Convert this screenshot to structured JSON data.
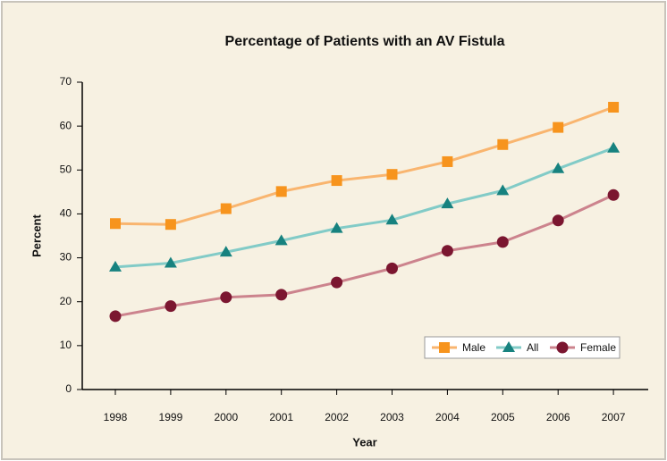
{
  "chart_data": {
    "type": "line",
    "title": "Percentage of Patients with an AV Fistula",
    "x_label": "Year",
    "y_label": "Percent",
    "categories": [
      "1998",
      "1999",
      "2000",
      "2001",
      "2002",
      "2003",
      "2004",
      "2005",
      "2006",
      "2007"
    ],
    "series": [
      {
        "name": "Male",
        "color": "#f7941d",
        "line_color": "#f9b56f",
        "marker": "square",
        "values": [
          37.8,
          37.6,
          41.2,
          45.1,
          47.6,
          49.0,
          51.9,
          55.8,
          59.7,
          64.3
        ]
      },
      {
        "name": "All",
        "color": "#17827f",
        "line_color": "#82cbc7",
        "marker": "triangle",
        "values": [
          27.9,
          28.8,
          31.3,
          33.9,
          36.7,
          38.6,
          42.3,
          45.3,
          50.3,
          55.0
        ]
      },
      {
        "name": "Female",
        "color": "#7b1630",
        "line_color": "#cc838d",
        "marker": "circle",
        "values": [
          16.7,
          19.0,
          21.0,
          21.6,
          24.4,
          27.6,
          31.6,
          33.6,
          38.5,
          44.3
        ]
      }
    ],
    "ylim": [
      0,
      70
    ],
    "yticks": [
      0,
      10,
      20,
      30,
      40,
      50,
      60,
      70
    ],
    "grid": false,
    "legend": "lower right"
  }
}
